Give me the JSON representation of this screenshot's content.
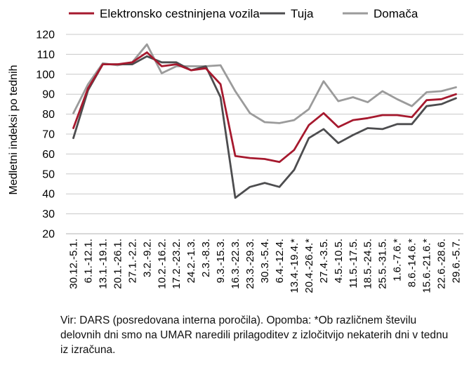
{
  "chart_data": {
    "type": "line",
    "title": "",
    "xlabel": "",
    "ylabel": "Medletni indeksi po tednih",
    "ylim": [
      20,
      120
    ],
    "yticks": [
      20,
      30,
      40,
      50,
      60,
      70,
      80,
      90,
      100,
      110,
      120
    ],
    "grid": "horizontal",
    "legend_position": "top",
    "categories": [
      "30.12.-5.1.",
      "6.1.-12.1.",
      "13.1.-19.1.",
      "20.1.-26.1.",
      "27.1.-2.2.",
      "3.2.-9.2.",
      "10.2.-16.2.",
      "17.2.-23.2.",
      "24.2.-1.3.",
      "2.3.-8.3.",
      "9.3.-15.3.",
      "16.3.-22.3.",
      "23.3.-29.3.",
      "30.3.-5.4.",
      "6.4.-12.4.",
      "13.4.-19.4.*",
      "20.4.-26.4.*",
      "27.4.-3.5.",
      "4.5.-10.5.",
      "11.5.-17.5.",
      "18.5.-24.5.",
      "25.5.-31.5.",
      "1.6.-7.6.*",
      "8.6.-14.6.*",
      "15.6.-21.6.*",
      "22.6.-28.6.",
      "29.6.-5.7."
    ],
    "series": [
      {
        "name": "Elektronsko cestninjena vozila",
        "color": "#a6192e",
        "values": [
          73,
          93,
          105,
          105,
          106,
          111,
          104,
          105,
          102,
          103,
          95,
          59,
          58,
          57.5,
          56,
          62,
          74.5,
          80.5,
          73.5,
          77,
          78,
          79.5,
          79.5,
          78.5,
          87,
          87.5,
          90
        ]
      },
      {
        "name": "Tuja",
        "color": "#4d4d4f",
        "values": [
          68,
          92,
          105,
          105,
          105,
          109,
          106,
          106,
          102,
          104,
          88.5,
          38,
          43.5,
          45.5,
          43.5,
          52,
          68,
          72.5,
          65.5,
          69.5,
          73,
          72.5,
          75,
          75,
          84,
          85,
          88
        ]
      },
      {
        "name": "Domača",
        "color": "#9b9b9b",
        "values": [
          80.5,
          95,
          105.5,
          104.5,
          106,
          115,
          100.5,
          104,
          104,
          104,
          104.5,
          91.5,
          80.5,
          76,
          75.5,
          77,
          82.5,
          96.5,
          86.5,
          88.5,
          86,
          91.5,
          87.5,
          84,
          91,
          91.5,
          93.5
        ]
      }
    ]
  },
  "note": "Vir: DARS (posredovana interna poročila). Opomba: *Ob različnem številu delovnih dni smo na UMAR naredili prilagoditev z izločitvijo nekaterih dni v tednu iz izračuna."
}
